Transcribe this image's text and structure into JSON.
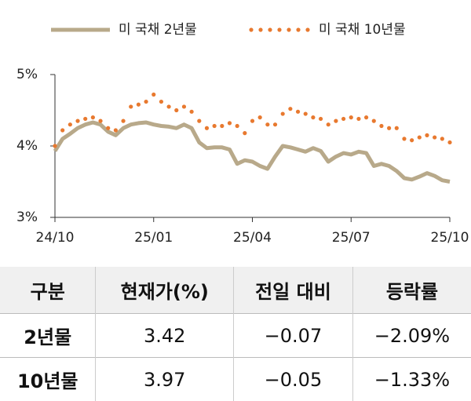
{
  "chart_data": {
    "type": "line",
    "categories": [
      "24/10",
      null,
      null,
      null,
      null,
      null,
      null,
      null,
      null,
      null,
      null,
      null,
      null,
      "25/01",
      null,
      null,
      null,
      null,
      null,
      null,
      null,
      null,
      null,
      null,
      null,
      null,
      "25/04",
      null,
      null,
      null,
      null,
      null,
      null,
      null,
      null,
      null,
      null,
      null,
      null,
      "25/07",
      null,
      null,
      null,
      null,
      null,
      null,
      null,
      null,
      null,
      null,
      null,
      null,
      "25/10"
    ],
    "series": [
      {
        "name": "미 국채 2년물",
        "color": "#b8a98a",
        "style": "solid",
        "values": [
          3.93,
          4.1,
          4.17,
          4.25,
          4.3,
          4.33,
          4.3,
          4.2,
          4.15,
          4.25,
          4.3,
          4.32,
          4.33,
          4.3,
          4.28,
          4.27,
          4.25,
          4.3,
          4.25,
          4.05,
          3.97,
          3.98,
          3.98,
          3.95,
          3.75,
          3.8,
          3.78,
          3.72,
          3.68,
          3.85,
          4.0,
          3.98,
          3.95,
          3.92,
          3.97,
          3.93,
          3.78,
          3.85,
          3.9,
          3.88,
          3.92,
          3.9,
          3.72,
          3.75,
          3.72,
          3.65,
          3.55,
          3.53,
          3.57,
          3.62,
          3.58,
          3.52,
          3.5
        ]
      },
      {
        "name": "미 국채 10년물",
        "color": "#e8792f",
        "style": "dotted",
        "values": [
          4.0,
          4.22,
          4.3,
          4.35,
          4.38,
          4.4,
          4.35,
          4.25,
          4.22,
          4.35,
          4.55,
          4.58,
          4.62,
          4.72,
          4.62,
          4.55,
          4.5,
          4.55,
          4.48,
          4.35,
          4.25,
          4.28,
          4.28,
          4.32,
          4.28,
          4.18,
          4.35,
          4.4,
          4.3,
          4.3,
          4.45,
          4.52,
          4.48,
          4.45,
          4.4,
          4.38,
          4.3,
          4.35,
          4.38,
          4.4,
          4.38,
          4.4,
          4.35,
          4.28,
          4.25,
          4.25,
          4.1,
          4.08,
          4.12,
          4.15,
          4.12,
          4.1,
          4.05
        ]
      }
    ],
    "ylim": [
      3,
      5
    ],
    "yticks": [
      {
        "value": 3,
        "label": "3%"
      },
      {
        "value": 4,
        "label": "4%"
      },
      {
        "value": 5,
        "label": "5%"
      }
    ],
    "grid": false,
    "legend": "top"
  },
  "table": {
    "header": [
      "구분",
      "현재가(%)",
      "전일 대비",
      "등락률"
    ],
    "rows": [
      [
        "2년물",
        "3.42",
        "−0.07",
        "−2.09%"
      ],
      [
        "10년물",
        "3.97",
        "−0.05",
        "−1.33%"
      ]
    ]
  }
}
